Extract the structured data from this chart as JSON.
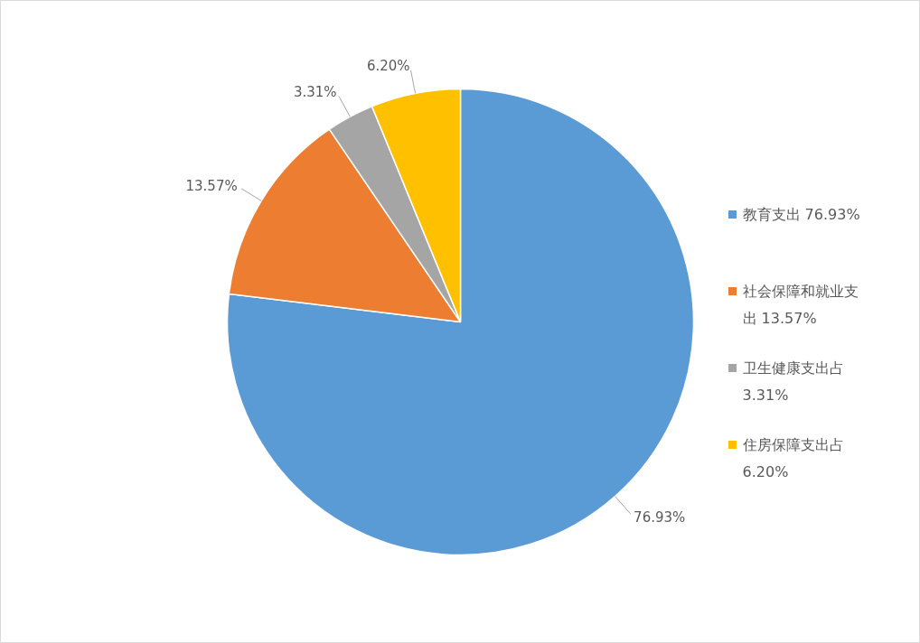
{
  "chart_data": {
    "type": "pie",
    "categories": [
      "教育支出 76.93%",
      "社会保障和就业支出 13.57%",
      "卫生健康支出占3.31%",
      "住房保障支出占6.20%"
    ],
    "values": [
      76.93,
      13.57,
      3.31,
      6.2
    ],
    "colors": [
      "#5b9bd5",
      "#ed7d31",
      "#a5a5a5",
      "#ffc000"
    ],
    "value_labels": [
      "76.93%",
      "13.57%",
      "3.31%",
      "6.20%"
    ],
    "legend": "right"
  }
}
